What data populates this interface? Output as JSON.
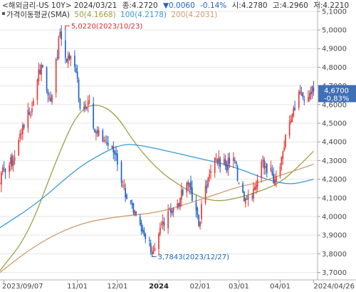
{
  "header": {
    "line1": {
      "title": "<해외금리-US 10Y> 2024/03/21",
      "close_label": "종:4.2720",
      "change": "▼0.0060",
      "change_pct": "-0.14%",
      "open_label": "시:4.2780",
      "high_label": "고:4.2960",
      "low_label": "저:4.2210"
    },
    "line2": {
      "label": "가격이동평균(SMA)",
      "ma50": "50(4.1668)",
      "ma100": "100(4.2178)",
      "ma200": "200(4.2031)"
    }
  },
  "annotations": {
    "high": "5.0220(2023/10/23)",
    "low": "3.7843(2023/12/27)"
  },
  "last_price": {
    "value": "4.6700",
    "change_pct": "-0.83%"
  },
  "colors": {
    "up": "#e53935",
    "down": "#1e63c8",
    "ma50": "#9aa043",
    "ma100": "#3a9ad9",
    "ma200": "#cf9a6e",
    "badge": "#3f6fb5",
    "grid": "#e6e6e6"
  },
  "chart_data": {
    "type": "candlestick",
    "title": "<해외금리-US 10Y>",
    "y_axis": {
      "side": "right",
      "range": [
        3.66,
        5.13
      ],
      "ticks": [
        "5,1000",
        "5,0000",
        "4,9000",
        "4,8000",
        "4,7000",
        "4,6000",
        "4,5000",
        "4,4000",
        "4,3000",
        "4,2000",
        "4,1000",
        "4,0000",
        "3,9000",
        "3,8000",
        "3,7000"
      ]
    },
    "x_axis": {
      "range": [
        "2023-09-04",
        "2024-04-29"
      ],
      "ticks": [
        "2023/09/07",
        "11/01",
        "12/01",
        "2024",
        "02/01",
        "03/01",
        "04/01",
        "2024/04/26"
      ]
    },
    "anchors": [
      {
        "date": "2023-09-04",
        "value": 4.18
      },
      {
        "date": "2023-09-07",
        "value": 4.26
      },
      {
        "date": "2023-09-14",
        "value": 4.3
      },
      {
        "date": "2023-09-21",
        "value": 4.49
      },
      {
        "date": "2023-09-28",
        "value": 4.58
      },
      {
        "date": "2023-10-03",
        "value": 4.79
      },
      {
        "date": "2023-10-06",
        "value": 4.8
      },
      {
        "date": "2023-10-10",
        "value": 4.65
      },
      {
        "date": "2023-10-13",
        "value": 4.65
      },
      {
        "date": "2023-10-19",
        "value": 4.99
      },
      {
        "date": "2023-10-23",
        "value": 4.85
      },
      {
        "date": "2023-10-27",
        "value": 4.86
      },
      {
        "date": "2023-11-01",
        "value": 4.74
      },
      {
        "date": "2023-11-03",
        "value": 4.58
      },
      {
        "date": "2023-11-09",
        "value": 4.62
      },
      {
        "date": "2023-11-14",
        "value": 4.45
      },
      {
        "date": "2023-11-22",
        "value": 4.41
      },
      {
        "date": "2023-11-30",
        "value": 4.33
      },
      {
        "date": "2023-12-05",
        "value": 4.17
      },
      {
        "date": "2023-12-13",
        "value": 4.02
      },
      {
        "date": "2023-12-19",
        "value": 3.92
      },
      {
        "date": "2023-12-27",
        "value": 3.81
      },
      {
        "date": "2024-01-02",
        "value": 3.94
      },
      {
        "date": "2024-01-10",
        "value": 4.02
      },
      {
        "date": "2024-01-17",
        "value": 4.1
      },
      {
        "date": "2024-01-24",
        "value": 4.18
      },
      {
        "date": "2024-01-31",
        "value": 3.95
      },
      {
        "date": "2024-02-05",
        "value": 4.16
      },
      {
        "date": "2024-02-13",
        "value": 4.31
      },
      {
        "date": "2024-02-20",
        "value": 4.27
      },
      {
        "date": "2024-02-27",
        "value": 4.3
      },
      {
        "date": "2024-03-01",
        "value": 4.18
      },
      {
        "date": "2024-03-06",
        "value": 4.1
      },
      {
        "date": "2024-03-12",
        "value": 4.15
      },
      {
        "date": "2024-03-19",
        "value": 4.3
      },
      {
        "date": "2024-03-21",
        "value": 4.27
      },
      {
        "date": "2024-03-28",
        "value": 4.2
      },
      {
        "date": "2024-04-03",
        "value": 4.35
      },
      {
        "date": "2024-04-10",
        "value": 4.55
      },
      {
        "date": "2024-04-16",
        "value": 4.66
      },
      {
        "date": "2024-04-19",
        "value": 4.62
      },
      {
        "date": "2024-04-25",
        "value": 4.7
      },
      {
        "date": "2024-04-26",
        "value": 4.67
      }
    ],
    "highlights": {
      "high": {
        "date": "2023-10-23",
        "value": 5.022
      },
      "low": {
        "date": "2023-12-27",
        "value": 3.7843
      }
    },
    "series": [
      {
        "name": "50",
        "last_value": 4.1668,
        "values": [
          {
            "date": "2023-09-04",
            "value": 3.71
          },
          {
            "date": "2023-09-25",
            "value": 3.9
          },
          {
            "date": "2023-10-16",
            "value": 4.3
          },
          {
            "date": "2023-11-01",
            "value": 4.56
          },
          {
            "date": "2023-11-15",
            "value": 4.61
          },
          {
            "date": "2023-11-30",
            "value": 4.55
          },
          {
            "date": "2023-12-15",
            "value": 4.38
          },
          {
            "date": "2024-01-02",
            "value": 4.24
          },
          {
            "date": "2024-01-16",
            "value": 4.17
          },
          {
            "date": "2024-02-01",
            "value": 4.1
          },
          {
            "date": "2024-02-15",
            "value": 4.08
          },
          {
            "date": "2024-03-01",
            "value": 4.1
          },
          {
            "date": "2024-03-15",
            "value": 4.13
          },
          {
            "date": "2024-04-01",
            "value": 4.18
          },
          {
            "date": "2024-04-15",
            "value": 4.27
          },
          {
            "date": "2024-04-26",
            "value": 4.35
          }
        ]
      },
      {
        "name": "100",
        "last_value": 4.2178,
        "values": [
          {
            "date": "2023-09-04",
            "value": 3.94
          },
          {
            "date": "2023-10-02",
            "value": 4.07
          },
          {
            "date": "2023-11-01",
            "value": 4.26
          },
          {
            "date": "2023-11-20",
            "value": 4.34
          },
          {
            "date": "2023-12-05",
            "value": 4.39
          },
          {
            "date": "2023-12-20",
            "value": 4.38
          },
          {
            "date": "2024-01-08",
            "value": 4.35
          },
          {
            "date": "2024-02-01",
            "value": 4.31
          },
          {
            "date": "2024-02-20",
            "value": 4.28
          },
          {
            "date": "2024-03-07",
            "value": 4.24
          },
          {
            "date": "2024-03-25",
            "value": 4.19
          },
          {
            "date": "2024-04-10",
            "value": 4.17
          },
          {
            "date": "2024-04-26",
            "value": 4.2
          }
        ]
      },
      {
        "name": "200",
        "last_value": 4.2031,
        "values": [
          {
            "date": "2023-09-04",
            "value": 3.7
          },
          {
            "date": "2023-10-01",
            "value": 3.85
          },
          {
            "date": "2023-11-01",
            "value": 3.96
          },
          {
            "date": "2023-12-01",
            "value": 4.0
          },
          {
            "date": "2024-01-01",
            "value": 4.02
          },
          {
            "date": "2024-02-01",
            "value": 4.09
          },
          {
            "date": "2024-03-01",
            "value": 4.16
          },
          {
            "date": "2024-03-15",
            "value": 4.18
          },
          {
            "date": "2024-04-01",
            "value": 4.22
          },
          {
            "date": "2024-04-26",
            "value": 4.28
          }
        ]
      }
    ]
  }
}
